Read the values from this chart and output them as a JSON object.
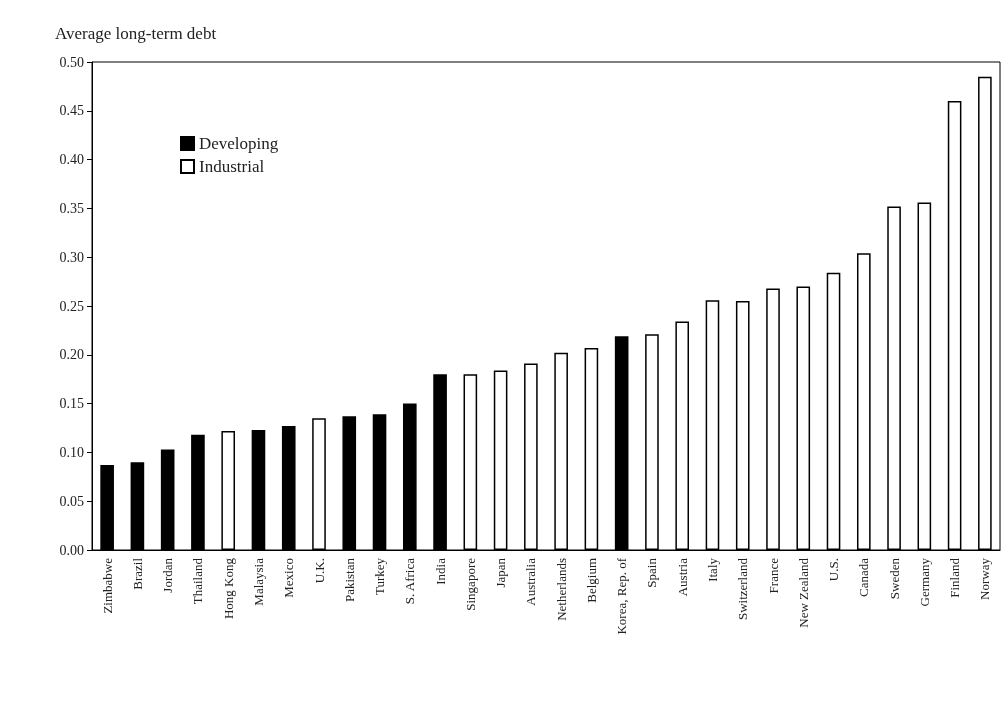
{
  "chart_data": {
    "type": "bar",
    "ylabel": "Average long-term debt",
    "categories": [
      "Zimbabwe",
      "Brazil",
      "Jordan",
      "Thailand",
      "Hong Kong",
      "Malaysia",
      "Mexico",
      "U.K.",
      "Pakistan",
      "Turkey",
      "S. Africa",
      "India",
      "Singapore",
      "Japan",
      "Australia",
      "Netherlands",
      "Belgium",
      "Korea, Rep. of",
      "Spain",
      "Austria",
      "Italy",
      "Switzerland",
      "France",
      "New Zealand",
      "U.S.",
      "Canada",
      "Sweden",
      "Germany",
      "Finland",
      "Norway"
    ],
    "series": [
      {
        "name": "Developing",
        "color": "#000000",
        "values": [
          0.087,
          0.09,
          0.103,
          0.118,
          null,
          0.123,
          0.127,
          null,
          0.137,
          0.139,
          0.15,
          0.18,
          null,
          null,
          null,
          null,
          null,
          0.219,
          null,
          null,
          null,
          null,
          null,
          null,
          null,
          null,
          null,
          null,
          null,
          null
        ]
      },
      {
        "name": "Industrial",
        "color": "#ffffff",
        "values": [
          null,
          null,
          null,
          null,
          0.122,
          null,
          null,
          0.135,
          null,
          null,
          null,
          null,
          0.18,
          0.184,
          0.191,
          0.202,
          0.207,
          null,
          0.221,
          0.234,
          0.256,
          0.255,
          0.268,
          0.27,
          0.284,
          0.304,
          0.352,
          0.356,
          0.46,
          0.485
        ]
      }
    ],
    "ylim": [
      0,
      0.5
    ],
    "yticks": [
      {
        "value": 0,
        "label": "0.00"
      },
      0.05,
      {
        "value": 0.1,
        "label": "0.10"
      },
      0.15,
      {
        "value": 0.2,
        "label": "0.20"
      },
      0.25,
      {
        "value": 0.3,
        "label": "0.30"
      },
      0.35,
      {
        "value": 0.4,
        "label": "0.40"
      },
      0.45,
      {
        "value": 0.5,
        "label": "0.50"
      }
    ],
    "grid": false,
    "legend": "top left"
  }
}
